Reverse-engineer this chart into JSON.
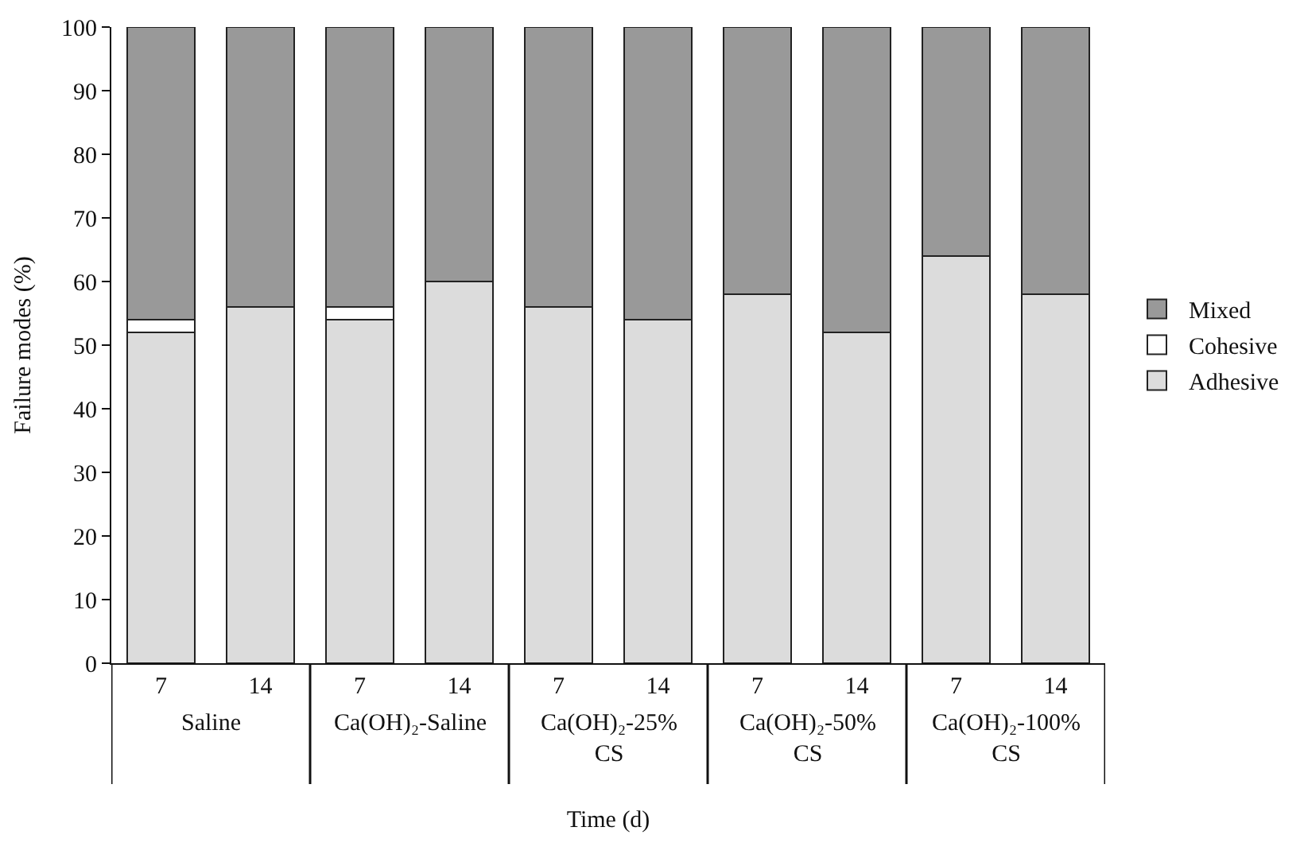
{
  "chart_data": {
    "type": "bar",
    "stacked": true,
    "xlabel": "Time (d)",
    "ylabel": "Failure modes (%)",
    "categories": [
      "7",
      "14",
      "7",
      "14",
      "7",
      "14",
      "7",
      "14",
      "7",
      "14"
    ],
    "annotations": [
      "Saline",
      "Ca(OH)₂-Saline",
      "Ca(OH)₂-25% CS",
      "Ca(OH)₂-50% CS",
      "Ca(OH)₂-100% CS"
    ],
    "series": [
      {
        "name": "Adhesive",
        "color": "#dcdcdc",
        "values": [
          52,
          56,
          54,
          60,
          56,
          54,
          58,
          52,
          64,
          58
        ]
      },
      {
        "name": "Cohesive",
        "color": "#ffffff",
        "values": [
          2,
          0,
          2,
          0,
          0,
          0,
          0,
          0,
          0,
          0
        ]
      },
      {
        "name": "Mixed",
        "color": "#999999",
        "values": [
          46,
          44,
          44,
          40,
          44,
          46,
          42,
          48,
          36,
          42
        ]
      }
    ],
    "ylim": [
      0,
      100
    ],
    "yticks": [
      0,
      10,
      20,
      30,
      40,
      50,
      60,
      70,
      80,
      90,
      100
    ],
    "legend": "right"
  }
}
